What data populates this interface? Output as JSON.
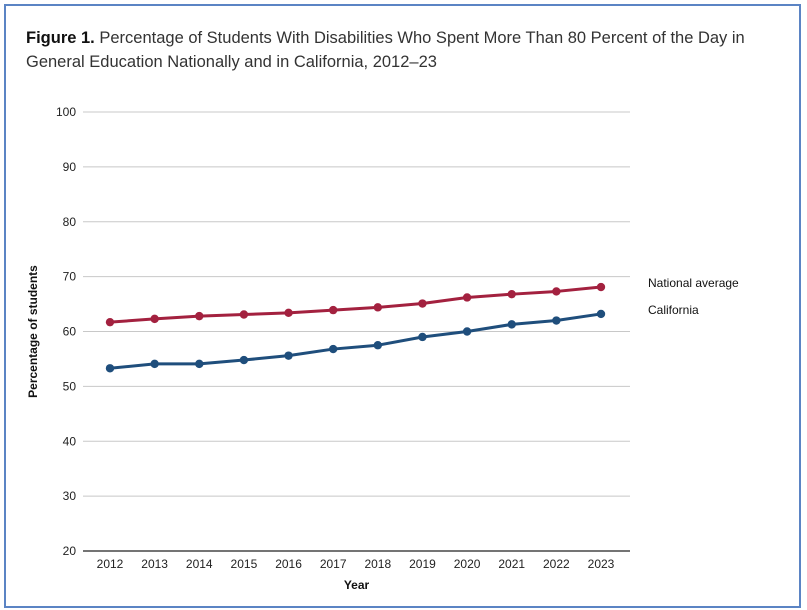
{
  "figure": {
    "label": "Figure 1.",
    "title": "Percentage of Students With Disabilities Who Spent More Than 80 Percent of the Day in General Education Nationally and in California, 2012–23"
  },
  "chart_data": {
    "type": "line",
    "title": "Percentage of Students With Disabilities Who Spent More Than 80 Percent of the Day in General Education Nationally and in California, 2012–23",
    "xlabel": "Year",
    "ylabel": "Percentage of students",
    "categories": [
      "2012",
      "2013",
      "2014",
      "2015",
      "2016",
      "2017",
      "2018",
      "2019",
      "2020",
      "2021",
      "2022",
      "2023"
    ],
    "yticks": [
      "20",
      "30",
      "40",
      "50",
      "60",
      "70",
      "80",
      "90",
      "100"
    ],
    "ylim": [
      20,
      100
    ],
    "grid": true,
    "legend_placement": "right",
    "series": [
      {
        "name": "National average",
        "color": "#a3213f",
        "values": [
          61.7,
          62.3,
          62.8,
          63.1,
          63.4,
          63.9,
          64.4,
          65.1,
          66.2,
          66.8,
          67.3,
          68.1
        ]
      },
      {
        "name": "California",
        "color": "#1f4e7c",
        "values": [
          53.3,
          54.1,
          54.1,
          54.8,
          55.6,
          56.8,
          57.5,
          59.0,
          60.0,
          61.3,
          62.0,
          63.2
        ]
      }
    ]
  }
}
